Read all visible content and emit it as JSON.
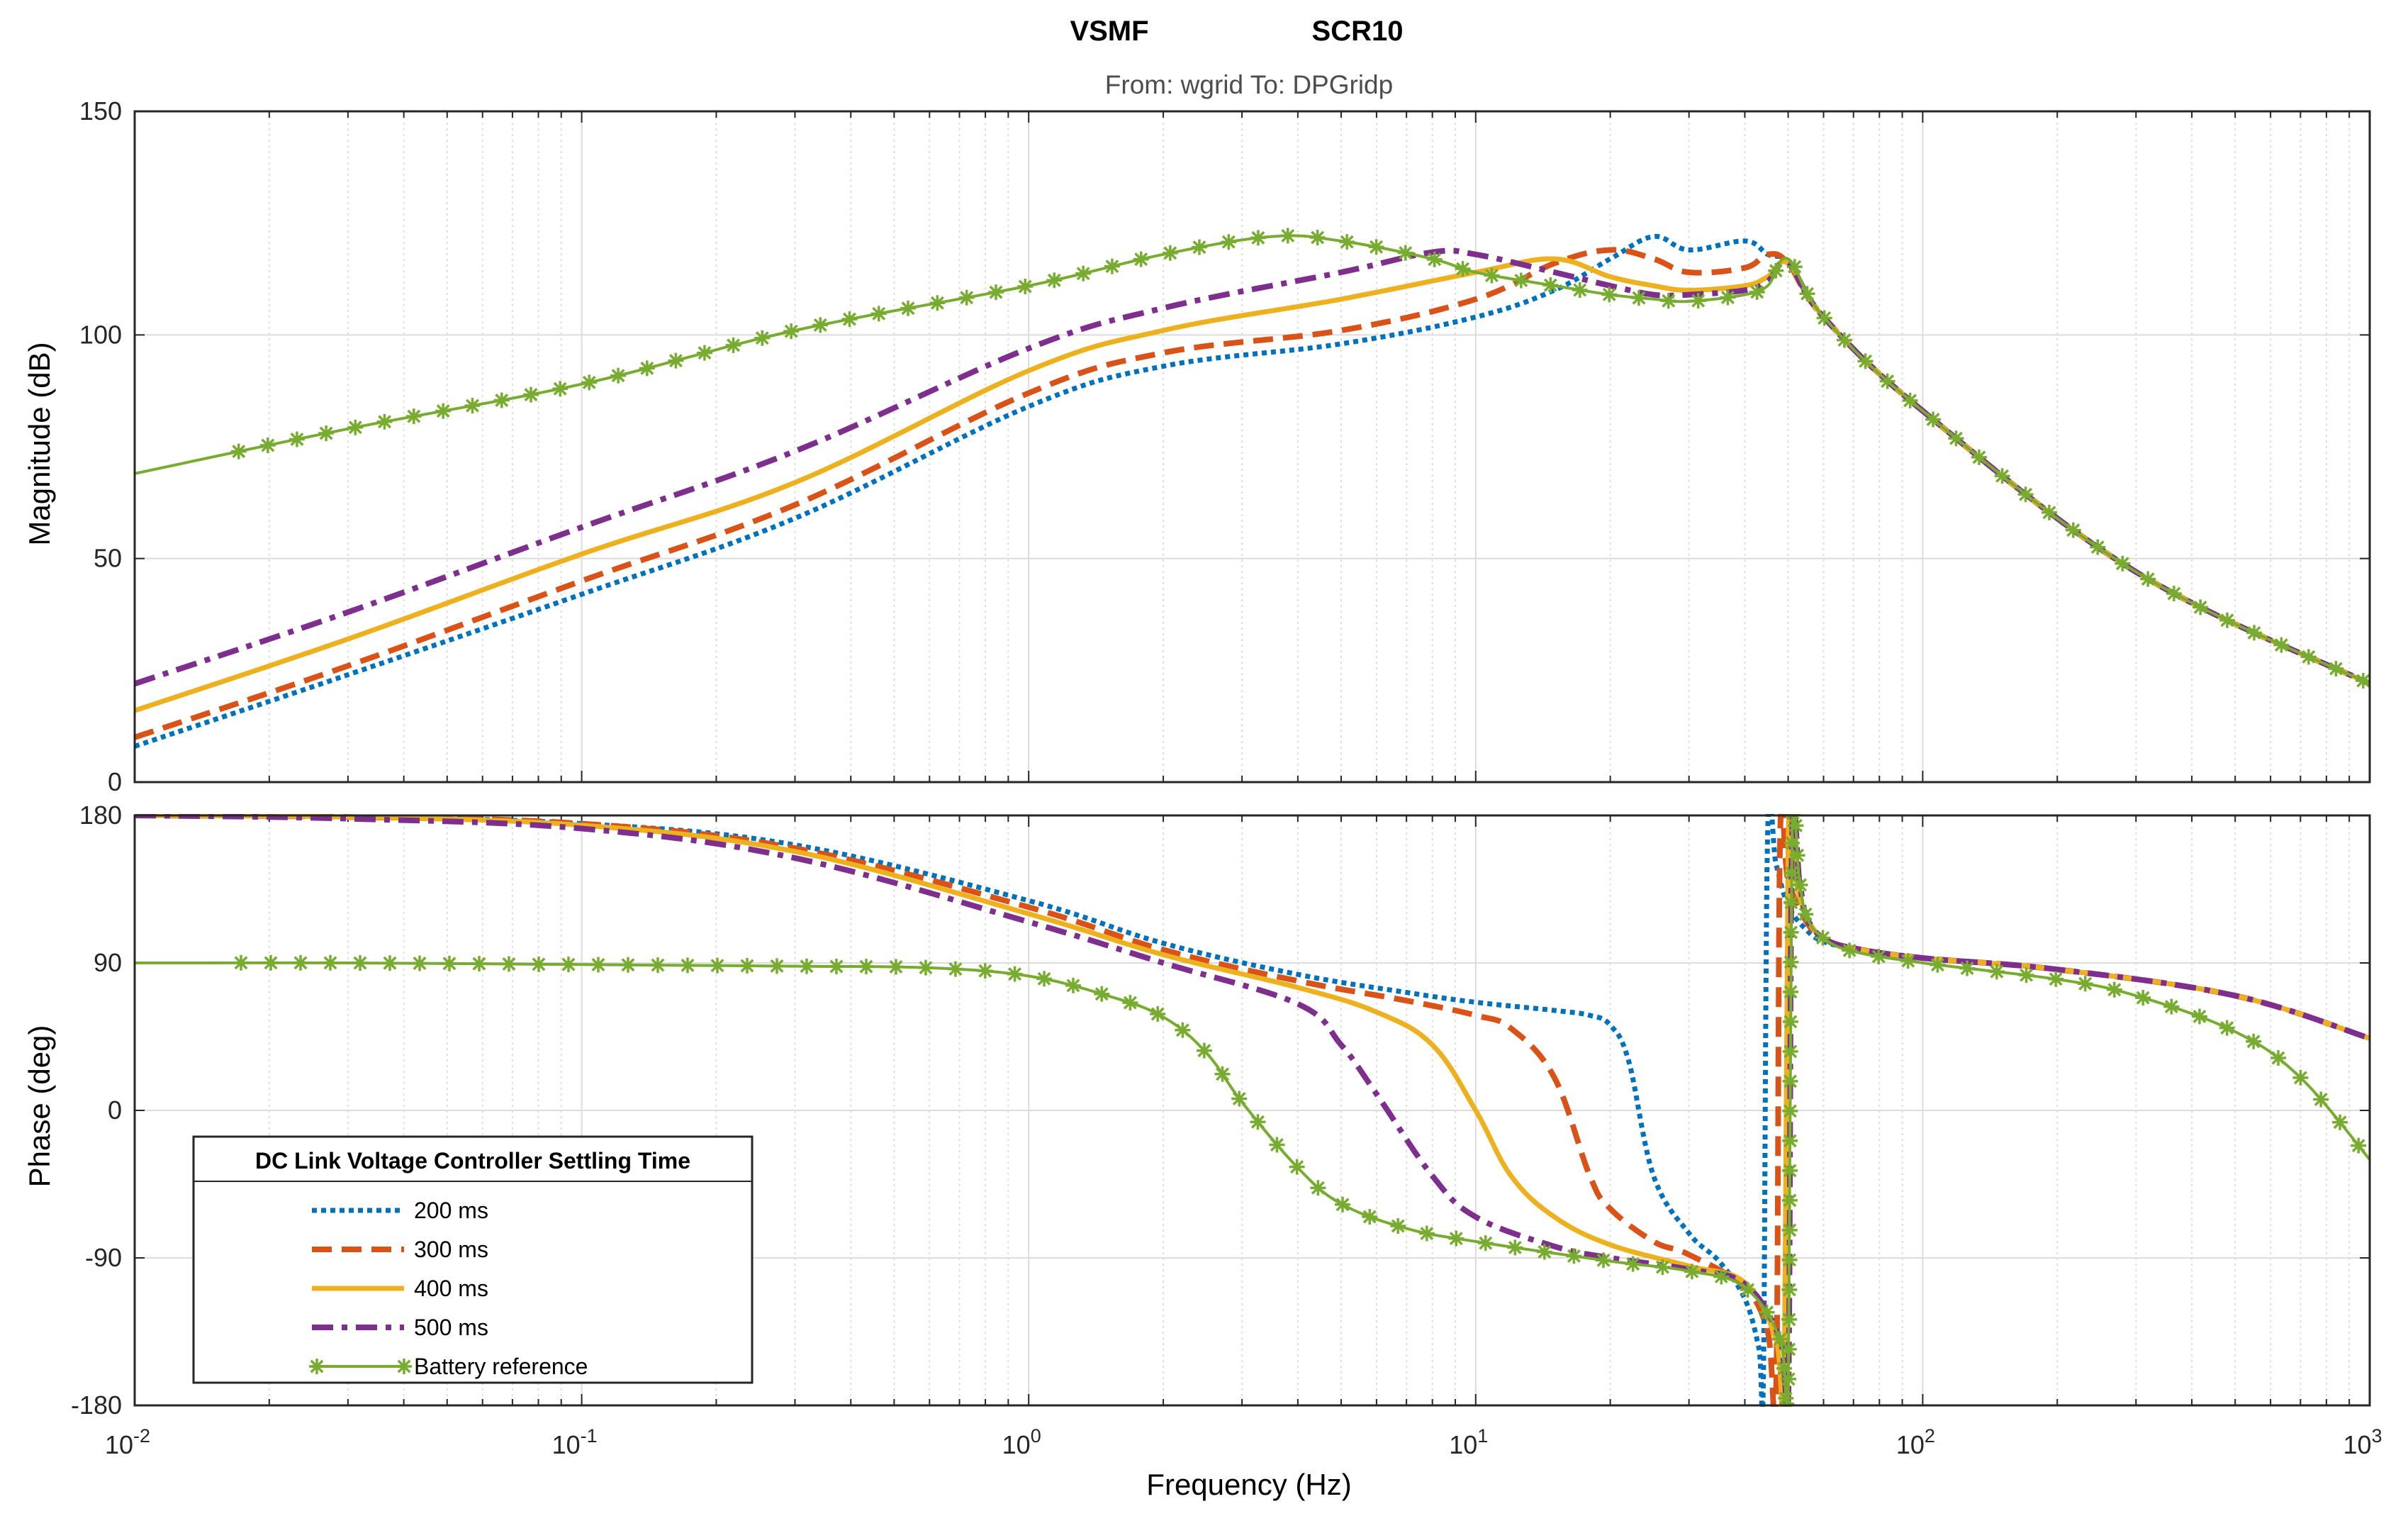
{
  "chart_data": {
    "type": "line",
    "subtype": "bode",
    "title_left": "VSMF",
    "title_right": "SCR10",
    "subtitle": "From: wgrid  To: DPGridp",
    "xlabel": "Frequency  (Hz)",
    "xscale": "log",
    "xlim": [
      0.01,
      1000
    ],
    "x_tick_labels": [
      {
        "value": 0.01,
        "base": "10",
        "exp": "-2"
      },
      {
        "value": 0.1,
        "base": "10",
        "exp": "-1"
      },
      {
        "value": 1,
        "base": "10",
        "exp": "0"
      },
      {
        "value": 10,
        "base": "10",
        "exp": "1"
      },
      {
        "value": 100,
        "base": "10",
        "exp": "2"
      },
      {
        "value": 1000,
        "base": "10",
        "exp": "3"
      }
    ],
    "grid": true,
    "panels": [
      {
        "name": "magnitude",
        "ylabel": "Magnitude (dB)",
        "ylim": [
          0,
          150
        ],
        "yticks": [
          0,
          50,
          100,
          150
        ],
        "series": [
          {
            "name": "200 ms",
            "x": [
              0.01,
              0.03,
              0.1,
              0.3,
              1,
              2,
              5,
              10,
              15,
              20,
              25,
              30,
              40,
              45,
              50,
              60,
              100,
              300,
              1000
            ],
            "y": [
              8,
              24,
              42,
              59,
              84,
              93,
              98,
              104,
              110,
              117,
              122,
              119,
              121,
              118,
              116,
              104,
              83,
              47,
              22
            ]
          },
          {
            "name": "300 ms",
            "x": [
              0.01,
              0.03,
              0.1,
              0.3,
              1,
              2,
              5,
              10,
              15,
              20,
              25,
              30,
              40,
              45,
              50,
              60,
              100,
              300,
              1000
            ],
            "y": [
              10,
              26,
              45,
              62,
              87,
              96,
              101,
              108,
              116,
              119,
              117,
              114,
              115,
              118,
              116,
              104,
              83,
              47,
              22
            ]
          },
          {
            "name": "400 ms",
            "x": [
              0.01,
              0.03,
              0.1,
              0.3,
              1,
              2,
              5,
              10,
              15,
              20,
              25,
              30,
              40,
              45,
              50,
              60,
              100,
              300,
              1000
            ],
            "y": [
              16,
              32,
              51,
              67,
              92,
              101,
              108,
              114,
              117,
              113,
              111,
              110,
              111,
              113,
              116,
              104,
              83,
              47,
              22
            ]
          },
          {
            "name": "500 ms",
            "x": [
              0.01,
              0.03,
              0.1,
              0.3,
              1,
              2,
              5,
              8,
              10,
              15,
              20,
              25,
              30,
              40,
              45,
              50,
              60,
              100,
              300,
              1000
            ],
            "y": [
              22,
              38,
              57,
              74,
              97,
              106,
              114,
              118.5,
              118,
              114,
              111,
              109,
              109,
              110,
              112,
              116,
              104,
              83,
              47,
              22
            ]
          },
          {
            "name": "Battery reference",
            "x": [
              0.01,
              0.03,
              0.1,
              0.3,
              1,
              2,
              3.5,
              5,
              8,
              10,
              15,
              20,
              25,
              30,
              40,
              45,
              50,
              60,
              100,
              300,
              1000
            ],
            "y": [
              69,
              79,
              89,
              101,
              111,
              118,
              122,
              121,
              117,
              114,
              111,
              109,
              108,
              107.5,
              109,
              111,
              117,
              104,
              83,
              47,
              22
            ]
          }
        ]
      },
      {
        "name": "phase",
        "ylabel": "Phase (deg)",
        "ylim": [
          -180,
          180
        ],
        "yticks": [
          -180,
          -90,
          0,
          90,
          180
        ],
        "series": [
          {
            "name": "200 ms",
            "x": [
              0.01,
              0.03,
              0.1,
              0.3,
              1,
              2,
              4,
              7,
              10,
              15,
              18,
              20,
              22,
              25,
              30,
              35,
              40,
              43,
              44,
              45,
              47,
              50,
              55,
              60,
              70,
              100,
              200,
              500,
              1000
            ],
            "y": [
              180,
              179,
              175,
              162,
              128,
              102,
              83,
              72,
              66,
              61,
              58,
              52,
              30,
              -40,
              -75,
              -92,
              -115,
              -145,
              -165,
              170,
              150,
              125,
              110,
              103,
              99,
              93,
              86,
              70,
              44
            ]
          },
          {
            "name": "300 ms",
            "x": [
              0.01,
              0.03,
              0.1,
              0.3,
              1,
              2,
              4,
              7,
              10,
              12,
              15,
              18,
              20,
              25,
              30,
              40,
              45,
              47,
              48,
              50,
              55,
              60,
              70,
              100,
              200,
              500,
              1000
            ],
            "y": [
              180,
              179,
              175,
              160,
              124,
              98,
              79,
              67,
              58,
              50,
              20,
              -40,
              -60,
              -80,
              -88,
              -108,
              -135,
              -170,
              170,
              140,
              115,
              105,
              99,
              93,
              86,
              70,
              44
            ]
          },
          {
            "name": "400 ms",
            "x": [
              0.01,
              0.03,
              0.1,
              0.3,
              1,
              2,
              4,
              6,
              8,
              10,
              12,
              15,
              20,
              30,
              40,
              47,
              49,
              50,
              52,
              55,
              60,
              70,
              100,
              200,
              500,
              1000
            ],
            "y": [
              180,
              179,
              174,
              158,
              120,
              95,
              75,
              60,
              40,
              0,
              -40,
              -65,
              -82,
              -95,
              -105,
              -140,
              -178,
              165,
              140,
              118,
              105,
              99,
              93,
              86,
              70,
              44
            ]
          },
          {
            "name": "500 ms",
            "x": [
              0.01,
              0.03,
              0.1,
              0.3,
              1,
              2,
              4,
              5,
              6,
              8,
              10,
              15,
              20,
              30,
              40,
              48,
              50,
              51,
              53,
              55,
              60,
              70,
              100,
              200,
              500,
              1000
            ],
            "y": [
              180,
              178,
              172,
              154,
              115,
              90,
              65,
              40,
              10,
              -40,
              -65,
              -83,
              -90,
              -97,
              -106,
              -140,
              -178,
              165,
              140,
              118,
              105,
              99,
              93,
              86,
              70,
              44
            ]
          },
          {
            "name": "Battery reference",
            "x": [
              0.01,
              0.03,
              0.1,
              0.3,
              0.6,
              1,
              1.5,
              2,
              2.5,
              3,
              4,
              5,
              7,
              10,
              20,
              30,
              40,
              48,
              50,
              51,
              53,
              55,
              60,
              70,
              100,
              200,
              300,
              500,
              700,
              1000
            ],
            "y": [
              90,
              90,
              89,
              88,
              87,
              82,
              70,
              57,
              35,
              5,
              -35,
              -57,
              -72,
              -80,
              -92,
              -98,
              -108,
              -140,
              -178,
              165,
              140,
              118,
              105,
              97,
              90,
              80,
              70,
              48,
              20,
              -30
            ]
          }
        ]
      }
    ],
    "legend": {
      "title": "DC Link Voltage Controller Settling Time",
      "position": "bottom-left of phase panel",
      "entries": [
        "200 ms",
        "300 ms",
        "400 ms",
        "500 ms",
        "Battery reference"
      ]
    },
    "styles": {
      "200 ms": {
        "color": "#0072BD",
        "dash": "dotted"
      },
      "300 ms": {
        "color": "#D95319",
        "dash": "dashed"
      },
      "400 ms": {
        "color": "#EDB120",
        "dash": "solid"
      },
      "500 ms": {
        "color": "#7E2F8E",
        "dash": "dashdot"
      },
      "Battery reference": {
        "color": "#77AC30",
        "dash": "solid-asterisk"
      }
    }
  }
}
